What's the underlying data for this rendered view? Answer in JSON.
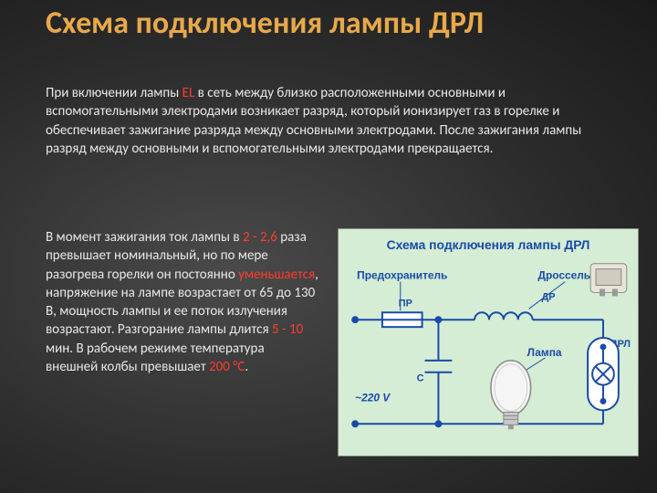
{
  "title": "Схема подключения лампы ДРЛ",
  "para1_parts": [
    {
      "t": "При включении лампы ",
      "c": "normal"
    },
    {
      "t": "EL",
      "c": "hl"
    },
    {
      "t": " в сеть между близко расположенными основными и вспомогательными электродами возникает разряд, который ионизирует газ в горелке и обеспечивает зажигание разряда между основными электродами. После зажигания лампы разряд между основными и вспомогательными электродами прекращается.",
      "c": "normal"
    }
  ],
  "para2_parts": [
    {
      "t": "В момент зажигания ток лампы в ",
      "c": "normal"
    },
    {
      "t": "2 - 2,6",
      "c": "hl"
    },
    {
      "t": " раза превышает номинальный, но по мере разогрева горелки он постоянно ",
      "c": "normal"
    },
    {
      "t": "уменьшается",
      "c": "hl"
    },
    {
      "t": ", напряжение на лампе возрастает от 65 до 130 В, мощность лампы и ее поток излучения возрастают. Разгорание лампы длится ",
      "c": "normal"
    },
    {
      "t": "5 - 10",
      "c": "hl"
    },
    {
      "t": " мин. В рабочем режиме температура внешней колбы превышает ",
      "c": "normal"
    },
    {
      "t": "200 °С",
      "c": "hl"
    },
    {
      "t": ".",
      "c": "normal"
    }
  ],
  "diagram": {
    "title": "Схема подключения лампы ДРЛ",
    "labels": {
      "fuse": "Предохранитель",
      "choke": "Дроссель",
      "PR": "ПР",
      "DR": "ДР",
      "C": "С",
      "voltage": "~220 V",
      "lamp": "Лампа",
      "DRL": "ДРЛ"
    },
    "colors": {
      "bg": "#d4edd4",
      "wire": "#1a4aa8",
      "text": "#1a4aa8",
      "lamp_body": "#f0f0f0",
      "choke_body": "#e8e4d8",
      "fuse_body": "#ffffff"
    },
    "wire_width": 2
  },
  "style": {
    "title_color": "#e8a84a",
    "highlight_color": "#ff3b2f",
    "text_color": "#e8e8e8",
    "bg_center": "#4a4a4a",
    "bg_edge": "#1a1a1a",
    "title_fontsize": 34,
    "body_fontsize": 15
  }
}
